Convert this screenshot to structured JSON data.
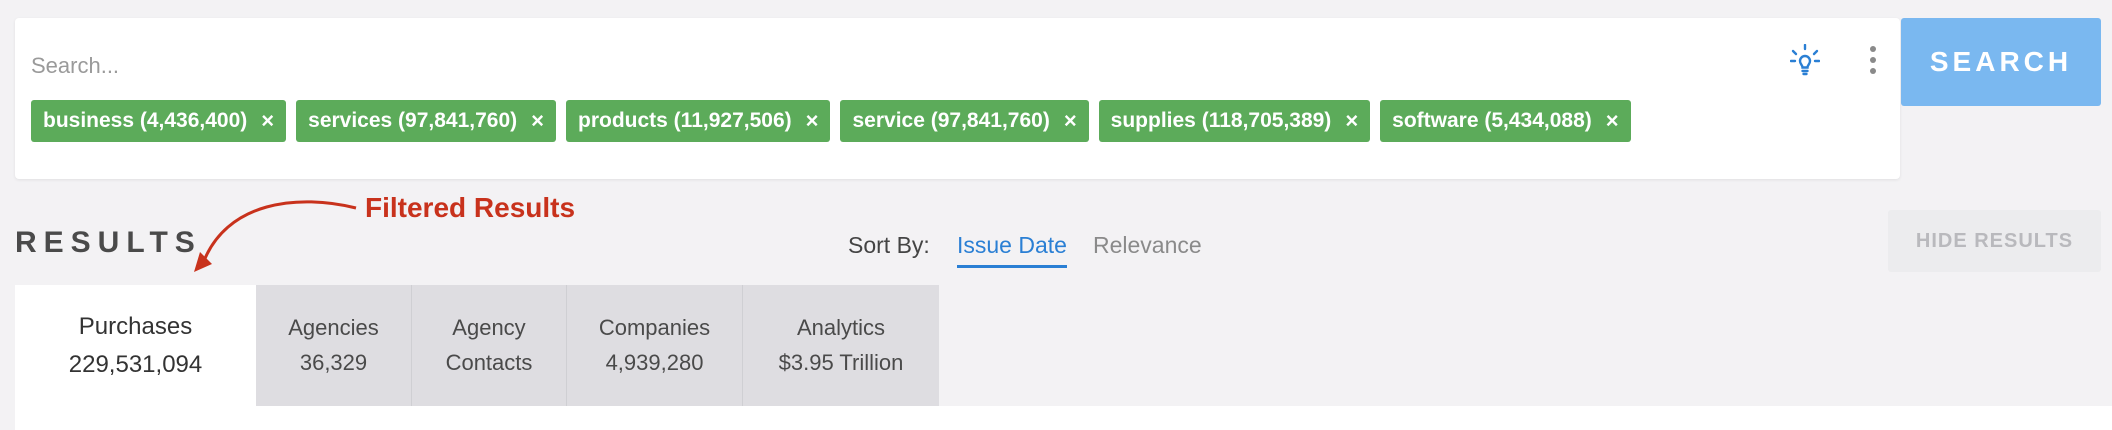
{
  "search": {
    "placeholder": "Search...",
    "button_label": "SEARCH"
  },
  "icons": {
    "bulb": "lightbulb-icon",
    "menu": "kebab-menu-icon",
    "remove": "close-icon"
  },
  "chips": [
    {
      "label": "business (4,436,400)"
    },
    {
      "label": "services (97,841,760)"
    },
    {
      "label": "products (11,927,506)"
    },
    {
      "label": "service (97,841,760)"
    },
    {
      "label": "supplies (118,705,389)"
    },
    {
      "label": "software (5,434,088)"
    }
  ],
  "chip_remove_glyph": "×",
  "results": {
    "title": "RESULTS",
    "annotation": "Filtered Results",
    "sort_label": "Sort By:",
    "sort_options": [
      "Issue Date",
      "Relevance"
    ],
    "hide_label": "HIDE RESULTS"
  },
  "tabs": [
    {
      "line1": "Purchases",
      "line2": "229,531,094"
    },
    {
      "line1": "Agencies",
      "line2": "36,329"
    },
    {
      "line1": "Agency",
      "line2": "Contacts"
    },
    {
      "line1": "Companies",
      "line2": "4,939,280"
    },
    {
      "line1": "Analytics",
      "line2": "$3.95 Trillion"
    }
  ],
  "colors": {
    "chip_green": "#5cab5a",
    "search_button": "#7ab8f0",
    "active_sort": "#2a7fd4",
    "annotation_red": "#c8321c"
  }
}
